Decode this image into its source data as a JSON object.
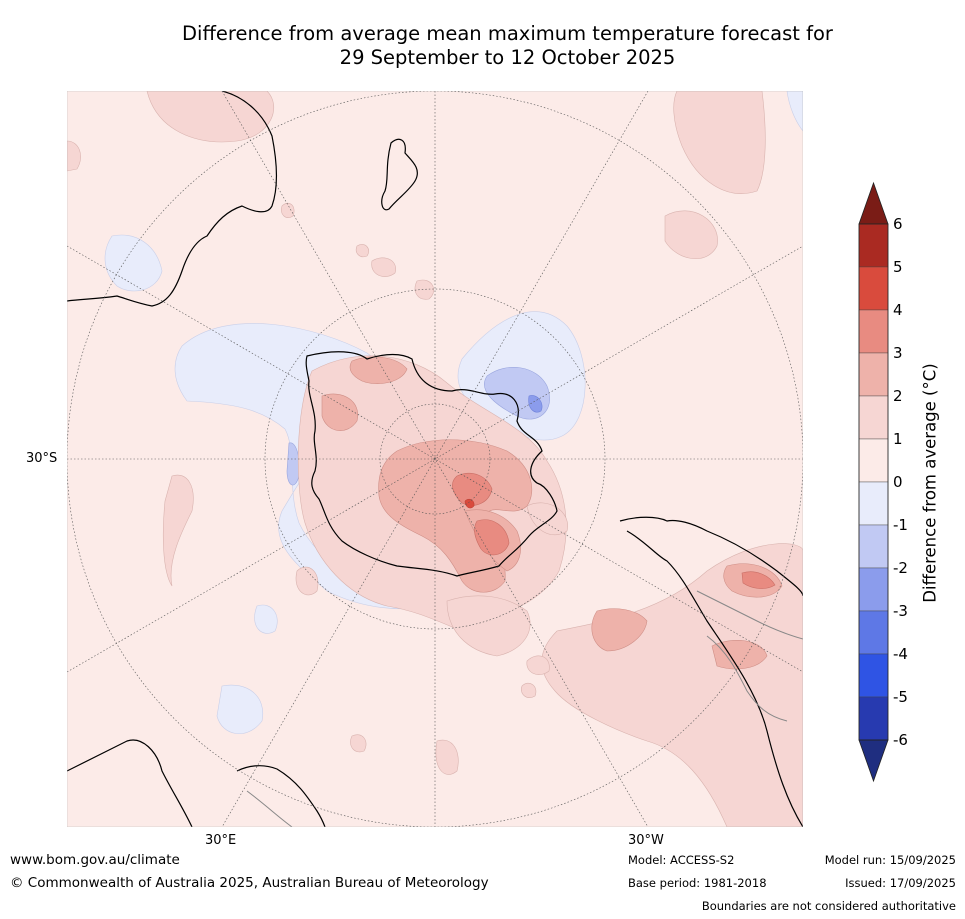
{
  "title": {
    "line1": "Difference from average mean maximum temperature forecast for",
    "line2": "29 September to 12 October 2025"
  },
  "map": {
    "projection": "south polar stereographic",
    "lat_label": "30°S",
    "lon_label_east": "30°E",
    "lon_label_west": "30°W"
  },
  "colorbar": {
    "title": "Difference from average (°C)",
    "ticks": [
      "6",
      "5",
      "4",
      "3",
      "2",
      "1",
      "0",
      "-1",
      "-2",
      "-3",
      "-4",
      "-5",
      "-6"
    ],
    "colors": {
      "over": "#7a1c16",
      "5_to_6": "#aa2a22",
      "4_to_5": "#d94b3d",
      "3_to_4": "#e88b81",
      "2_to_3": "#eeb2aa",
      "1_to_2": "#f6d6d3",
      "0_to_1": "#fcebe8",
      "m1_to_0": "#e8ecfb",
      "m2_to_m1": "#c1c9f3",
      "m3_to_m2": "#8b9cec",
      "m4_to_m3": "#5e78e6",
      "m5_to_m4": "#2f54e4",
      "m6_to_m5": "#273ab0",
      "under": "#1f2e80"
    }
  },
  "footer": {
    "website": "www.bom.gov.au/climate",
    "copyright": "© Commonwealth of Australia 2025, Australian Bureau of Meteorology",
    "model": "Model: ACCESS-S2",
    "base_period": "Base period: 1981-2018",
    "model_run": "Model run: 15/09/2025",
    "issued": "Issued: 17/09/2025",
    "disclaimer": "Boundaries are not considered authoritative"
  }
}
